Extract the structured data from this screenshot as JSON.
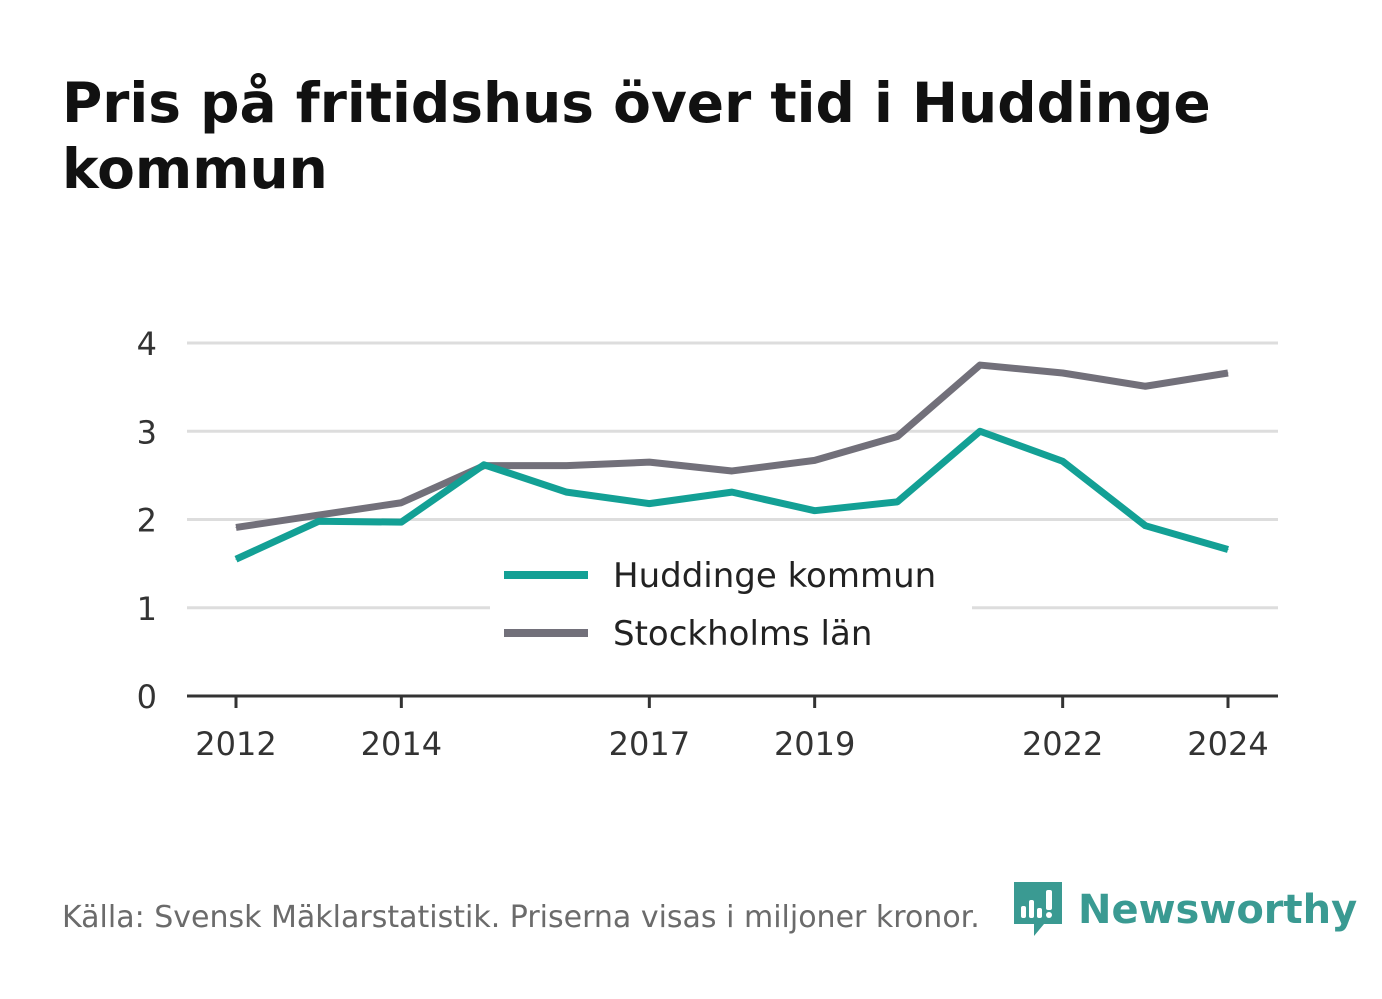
{
  "colors": {
    "huddinge": "#13a095",
    "stockholm": "#72707a",
    "grid": "#dddddd",
    "axis": "#333333",
    "brand": "#3a9a92"
  },
  "chart_data": {
    "type": "line",
    "title": "Pris på fritidshus över tid i Huddinge kommun",
    "xlabel": "",
    "ylabel": "",
    "x": [
      2012,
      2013,
      2014,
      2015,
      2016,
      2017,
      2018,
      2019,
      2020,
      2021,
      2022,
      2023,
      2024
    ],
    "x_ticks": [
      "2012",
      "2014",
      "2017",
      "2019",
      "2022",
      "2024"
    ],
    "y_ticks": [
      "0",
      "1",
      "2",
      "3",
      "4"
    ],
    "ylim": [
      0,
      4
    ],
    "grid": true,
    "legend_position": "center",
    "series": [
      {
        "name": "Huddinge kommun",
        "color_key": "huddinge",
        "values": [
          1.55,
          1.98,
          1.97,
          2.62,
          2.31,
          2.18,
          2.31,
          2.1,
          2.2,
          3.0,
          2.66,
          1.93,
          1.66
        ]
      },
      {
        "name": "Stockholms län",
        "color_key": "stockholm",
        "values": [
          1.91,
          2.05,
          2.19,
          2.61,
          2.61,
          2.65,
          2.55,
          2.67,
          2.94,
          3.75,
          3.66,
          3.51,
          3.66
        ]
      }
    ]
  },
  "footer": {
    "source": "Källa: Svensk Mäklarstatistik. Priserna visas i miljoner kronor.",
    "brand": "Newsworthy",
    "brand_icon": "newsworthy-logo-icon"
  }
}
